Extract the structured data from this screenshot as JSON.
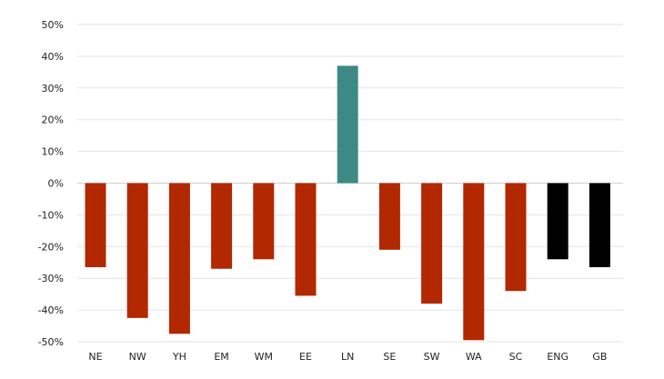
{
  "chart_data": {
    "type": "bar",
    "title": "",
    "xlabel": "",
    "ylabel": "",
    "ylim": [
      -50,
      50
    ],
    "ytick_values": [
      50,
      40,
      30,
      20,
      10,
      0,
      -10,
      -20,
      -30,
      -40,
      -50
    ],
    "ytick_labels": [
      "50%",
      "40%",
      "30%",
      "20%",
      "10%",
      "0%",
      "-10%",
      "-20%",
      "-30%",
      "-40%",
      "-50%"
    ],
    "categories": [
      "NE",
      "NW",
      "YH",
      "EM",
      "WM",
      "EE",
      "LN",
      "SE",
      "SW",
      "WA",
      "SC",
      "ENG",
      "GB"
    ],
    "values": [
      -26.5,
      -42.5,
      -47.5,
      -27,
      -24,
      -35.5,
      37,
      -21,
      -38,
      -49.5,
      -34,
      -24,
      -26.5
    ],
    "bar_colors": [
      "#b22800",
      "#b22800",
      "#b22800",
      "#b22800",
      "#b22800",
      "#b22800",
      "#3d8a85",
      "#b22800",
      "#b22800",
      "#b22800",
      "#b22800",
      "#000000",
      "#000000"
    ],
    "grid": true,
    "legend": "none"
  }
}
